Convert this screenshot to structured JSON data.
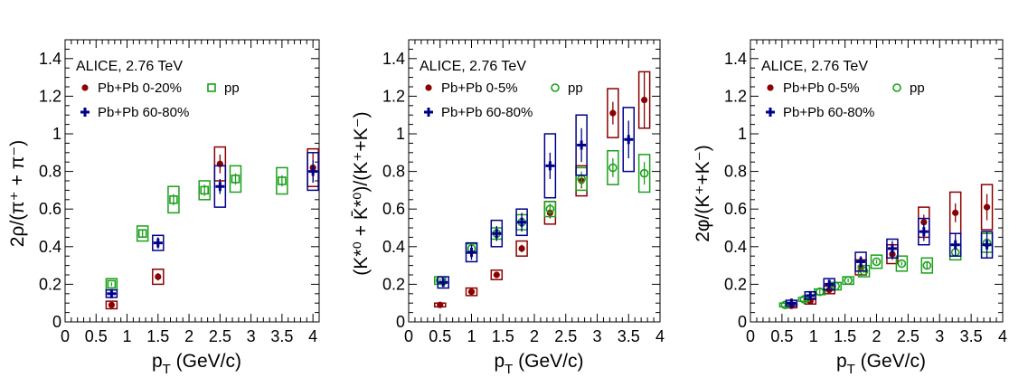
{
  "chart_data": [
    {
      "type": "scatter",
      "title": "",
      "annotation": "ALICE, 2.76 TeV",
      "xlabel": "p",
      "xlabel_sub": "T",
      "xlabel_unit": "(GeV/c)",
      "ylabel": "2ρ/(π⁺ + π⁻)",
      "xlim": [
        0,
        4.1
      ],
      "ylim": [
        0,
        1.5
      ],
      "xticks": [
        "0",
        "0.5",
        "1",
        "1.5",
        "2",
        "2.5",
        "3",
        "3.5",
        "4"
      ],
      "yticks": [
        "0",
        "0.2",
        "0.4",
        "0.6",
        "0.8",
        "1",
        "1.2",
        "1.4"
      ],
      "legend": [
        {
          "label": "Pb+Pb 0-20%",
          "series": 0
        },
        {
          "label": "pp",
          "series": 1
        },
        {
          "label": "Pb+Pb 60-80%",
          "series": 2
        }
      ],
      "series": [
        {
          "name": "Pb+Pb 0-20%",
          "marker": "dot",
          "color": "#8b0000",
          "points": [
            [
              0.75,
              0.09,
              0.01,
              0.02
            ],
            [
              1.5,
              0.24,
              0.02,
              0.04
            ],
            [
              2.5,
              0.84,
              0.05,
              0.09
            ],
            [
              4.0,
              0.82,
              0.08,
              0.1
            ]
          ]
        },
        {
          "name": "pp",
          "marker": "open-square",
          "color": "#1aa01a",
          "points": [
            [
              0.75,
              0.2,
              0.01,
              0.03
            ],
            [
              1.25,
              0.47,
              0.02,
              0.04
            ],
            [
              1.75,
              0.65,
              0.03,
              0.07
            ],
            [
              2.25,
              0.7,
              0.03,
              0.05
            ],
            [
              2.75,
              0.76,
              0.03,
              0.07
            ],
            [
              3.5,
              0.75,
              0.03,
              0.07
            ]
          ]
        },
        {
          "name": "Pb+Pb 60-80%",
          "marker": "cross",
          "color": "#00008b",
          "points": [
            [
              0.75,
              0.15,
              0.01,
              0.02
            ],
            [
              1.5,
              0.42,
              0.03,
              0.04
            ],
            [
              2.5,
              0.72,
              0.04,
              0.11
            ],
            [
              4.0,
              0.8,
              0.06,
              0.1
            ]
          ]
        }
      ]
    },
    {
      "type": "scatter",
      "title": "",
      "annotation": "ALICE, 2.76 TeV",
      "xlabel": "p",
      "xlabel_sub": "T",
      "xlabel_unit": "(GeV/c)",
      "ylabel": "(K*⁰ + K̄*⁰)/(K⁺+K⁻)",
      "xlim": [
        0,
        4.0
      ],
      "ylim": [
        0,
        1.5
      ],
      "xticks": [
        "0",
        "0.5",
        "1",
        "1.5",
        "2",
        "2.5",
        "3",
        "3.5",
        "4"
      ],
      "yticks": [
        "0",
        "0.2",
        "0.4",
        "0.6",
        "0.8",
        "1",
        "1.2",
        "1.4"
      ],
      "legend": [
        {
          "label": "Pb+Pb 0-5%",
          "series": 0
        },
        {
          "label": "pp",
          "series": 1
        },
        {
          "label": "Pb+Pb 60-80%",
          "series": 2
        }
      ],
      "series": [
        {
          "name": "Pb+Pb 0-5%",
          "marker": "dot",
          "color": "#8b0000",
          "points": [
            [
              0.5,
              0.09,
              0.005,
              0.01
            ],
            [
              1.0,
              0.16,
              0.01,
              0.02
            ],
            [
              1.4,
              0.25,
              0.01,
              0.025
            ],
            [
              1.8,
              0.39,
              0.02,
              0.04
            ],
            [
              2.25,
              0.58,
              0.03,
              0.06
            ],
            [
              2.75,
              0.75,
              0.04,
              0.08
            ],
            [
              3.25,
              1.11,
              0.06,
              0.13
            ],
            [
              3.75,
              1.18,
              0.15,
              0.15
            ]
          ]
        },
        {
          "name": "pp",
          "marker": "open-circle",
          "color": "#1aa01a",
          "points": [
            [
              0.5,
              0.22,
              0.01,
              0.02
            ],
            [
              1.0,
              0.39,
              0.02,
              0.025
            ],
            [
              1.4,
              0.47,
              0.02,
              0.03
            ],
            [
              1.8,
              0.53,
              0.02,
              0.04
            ],
            [
              2.25,
              0.6,
              0.03,
              0.04
            ],
            [
              2.75,
              0.76,
              0.04,
              0.06
            ],
            [
              3.25,
              0.82,
              0.05,
              0.09
            ],
            [
              3.75,
              0.79,
              0.06,
              0.1
            ]
          ]
        },
        {
          "name": "Pb+Pb 60-80%",
          "marker": "cross",
          "color": "#00008b",
          "points": [
            [
              0.55,
              0.21,
              0.02,
              0.03
            ],
            [
              1.0,
              0.37,
              0.04,
              0.05
            ],
            [
              1.4,
              0.47,
              0.04,
              0.07
            ],
            [
              1.8,
              0.53,
              0.05,
              0.07
            ],
            [
              2.25,
              0.83,
              0.07,
              0.17
            ],
            [
              2.75,
              0.94,
              0.09,
              0.16
            ],
            [
              3.5,
              0.97,
              0.1,
              0.17
            ]
          ]
        }
      ]
    },
    {
      "type": "scatter",
      "title": "",
      "annotation": "ALICE, 2.76 TeV",
      "xlabel": "p",
      "xlabel_sub": "T",
      "xlabel_unit": "(GeV/c)",
      "ylabel": "2φ/(K⁺+K⁻)",
      "xlim": [
        0,
        4.0
      ],
      "ylim": [
        0,
        1.5
      ],
      "xticks": [
        "0",
        "0.5",
        "1",
        "1.5",
        "2",
        "2.5",
        "3",
        "3.5",
        "4"
      ],
      "yticks": [
        "0",
        "0.2",
        "0.4",
        "0.6",
        "0.8",
        "1",
        "1.2",
        "1.4"
      ],
      "legend": [
        {
          "label": "Pb+Pb 0-5%",
          "series": 0
        },
        {
          "label": "pp",
          "series": 1
        },
        {
          "label": "Pb+Pb 60-80%",
          "series": 2
        }
      ],
      "series": [
        {
          "name": "Pb+Pb 0-5%",
          "marker": "dot",
          "color": "#8b0000",
          "points": [
            [
              0.65,
              0.085,
              0.005,
              0.01
            ],
            [
              0.95,
              0.11,
              0.005,
              0.015
            ],
            [
              1.25,
              0.17,
              0.01,
              0.02
            ],
            [
              1.75,
              0.29,
              0.02,
              0.04
            ],
            [
              2.25,
              0.36,
              0.03,
              0.05
            ],
            [
              2.75,
              0.53,
              0.04,
              0.08
            ],
            [
              3.25,
              0.58,
              0.05,
              0.11
            ],
            [
              3.75,
              0.61,
              0.07,
              0.12
            ]
          ]
        },
        {
          "name": "pp",
          "marker": "open-circle",
          "color": "#1aa01a",
          "points": [
            [
              0.55,
              0.09,
              0.005,
              0.01
            ],
            [
              0.85,
              0.12,
              0.005,
              0.01
            ],
            [
              1.1,
              0.16,
              0.01,
              0.015
            ],
            [
              1.35,
              0.19,
              0.01,
              0.02
            ],
            [
              1.55,
              0.22,
              0.01,
              0.02
            ],
            [
              1.8,
              0.27,
              0.01,
              0.03
            ],
            [
              2.0,
              0.32,
              0.01,
              0.035
            ],
            [
              2.4,
              0.31,
              0.01,
              0.04
            ],
            [
              2.8,
              0.3,
              0.02,
              0.04
            ],
            [
              3.25,
              0.37,
              0.02,
              0.04
            ],
            [
              3.75,
              0.42,
              0.02,
              0.05
            ]
          ]
        },
        {
          "name": "Pb+Pb 60-80%",
          "marker": "cross",
          "color": "#00008b",
          "points": [
            [
              0.65,
              0.1,
              0.01,
              0.015
            ],
            [
              0.95,
              0.14,
              0.01,
              0.02
            ],
            [
              1.25,
              0.2,
              0.02,
              0.03
            ],
            [
              1.75,
              0.32,
              0.03,
              0.05
            ],
            [
              2.25,
              0.39,
              0.04,
              0.05
            ],
            [
              2.75,
              0.48,
              0.05,
              0.07
            ],
            [
              3.25,
              0.41,
              0.06,
              0.06
            ],
            [
              3.75,
              0.41,
              0.07,
              0.07
            ]
          ]
        }
      ]
    }
  ]
}
